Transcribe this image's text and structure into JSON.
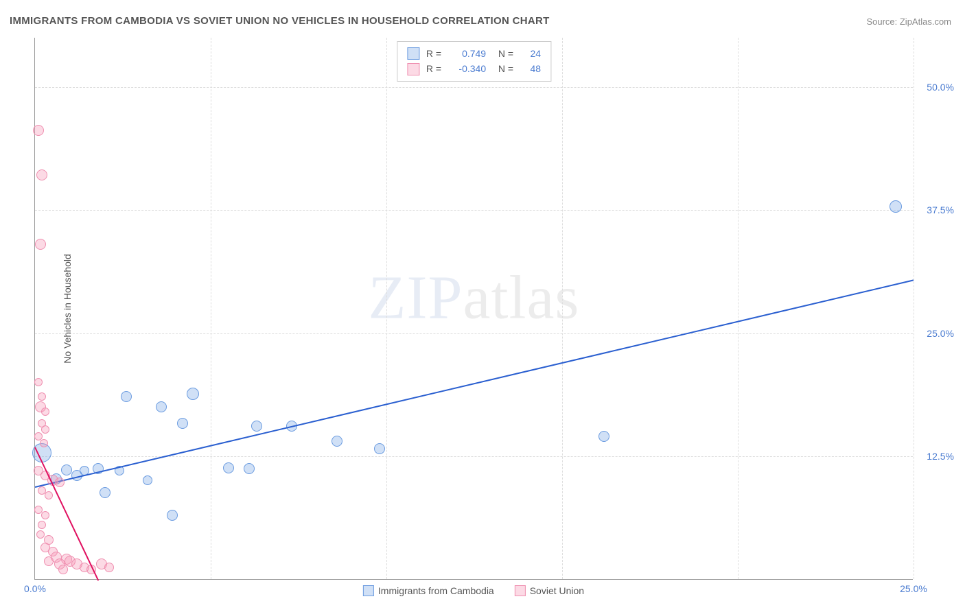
{
  "title": "IMMIGRANTS FROM CAMBODIA VS SOVIET UNION NO VEHICLES IN HOUSEHOLD CORRELATION CHART",
  "source": "Source: ZipAtlas.com",
  "ylabel": "No Vehicles in Household",
  "watermark_a": "ZIP",
  "watermark_b": "atlas",
  "chart": {
    "type": "scatter",
    "xlim": [
      0,
      25
    ],
    "ylim": [
      0,
      55
    ],
    "xticks": [
      {
        "v": 0,
        "l": "0.0%"
      },
      {
        "v": 25,
        "l": "25.0%"
      }
    ],
    "yticks": [
      {
        "v": 12.5,
        "l": "12.5%"
      },
      {
        "v": 25,
        "l": "25.0%"
      },
      {
        "v": 37.5,
        "l": "37.5%"
      },
      {
        "v": 50,
        "l": "50.0%"
      }
    ],
    "xgrid": [
      5,
      10,
      15,
      20,
      25
    ],
    "grid_color": "#dddddd",
    "series": [
      {
        "name": "Immigrants from Cambodia",
        "color_fill": "rgba(120,165,230,0.35)",
        "color_stroke": "#6a9be0",
        "trend_color": "#2a5fd0",
        "trend": {
          "x1": 0,
          "y1": 9.5,
          "x2": 25,
          "y2": 30.5
        },
        "R": "0.749",
        "N": "24",
        "points": [
          {
            "x": 0.2,
            "y": 12.8,
            "r": 14
          },
          {
            "x": 0.6,
            "y": 10.2,
            "r": 8
          },
          {
            "x": 0.9,
            "y": 11.1,
            "r": 8
          },
          {
            "x": 1.2,
            "y": 10.5,
            "r": 8
          },
          {
            "x": 1.4,
            "y": 11.0,
            "r": 7
          },
          {
            "x": 1.8,
            "y": 11.2,
            "r": 8
          },
          {
            "x": 2.0,
            "y": 8.8,
            "r": 8
          },
          {
            "x": 2.4,
            "y": 11.0,
            "r": 7
          },
          {
            "x": 2.6,
            "y": 18.5,
            "r": 8
          },
          {
            "x": 3.2,
            "y": 10.0,
            "r": 7
          },
          {
            "x": 3.6,
            "y": 17.5,
            "r": 8
          },
          {
            "x": 3.9,
            "y": 6.5,
            "r": 8
          },
          {
            "x": 4.2,
            "y": 15.8,
            "r": 8
          },
          {
            "x": 4.5,
            "y": 18.8,
            "r": 9
          },
          {
            "x": 5.5,
            "y": 11.3,
            "r": 8
          },
          {
            "x": 6.1,
            "y": 11.2,
            "r": 8
          },
          {
            "x": 6.3,
            "y": 15.5,
            "r": 8
          },
          {
            "x": 7.3,
            "y": 15.5,
            "r": 8
          },
          {
            "x": 8.6,
            "y": 14.0,
            "r": 8
          },
          {
            "x": 9.8,
            "y": 13.2,
            "r": 8
          },
          {
            "x": 16.2,
            "y": 14.5,
            "r": 8
          },
          {
            "x": 24.5,
            "y": 37.8,
            "r": 9
          }
        ]
      },
      {
        "name": "Soviet Union",
        "color_fill": "rgba(245,150,180,0.35)",
        "color_stroke": "#ef8fb0",
        "trend_color": "#e01060",
        "trend": {
          "x1": 0,
          "y1": 13.5,
          "x2": 1.8,
          "y2": 0
        },
        "R": "-0.340",
        "N": "48",
        "points": [
          {
            "x": 0.1,
            "y": 45.5,
            "r": 8
          },
          {
            "x": 0.2,
            "y": 41.0,
            "r": 8
          },
          {
            "x": 0.15,
            "y": 34.0,
            "r": 8
          },
          {
            "x": 0.1,
            "y": 20.0,
            "r": 6
          },
          {
            "x": 0.2,
            "y": 18.5,
            "r": 6
          },
          {
            "x": 0.15,
            "y": 17.5,
            "r": 8
          },
          {
            "x": 0.3,
            "y": 17.0,
            "r": 6
          },
          {
            "x": 0.2,
            "y": 15.8,
            "r": 6
          },
          {
            "x": 0.3,
            "y": 15.2,
            "r": 6
          },
          {
            "x": 0.1,
            "y": 14.5,
            "r": 6
          },
          {
            "x": 0.25,
            "y": 13.8,
            "r": 6
          },
          {
            "x": 0.1,
            "y": 11.0,
            "r": 7
          },
          {
            "x": 0.3,
            "y": 10.5,
            "r": 7
          },
          {
            "x": 0.5,
            "y": 10.0,
            "r": 8
          },
          {
            "x": 0.7,
            "y": 9.8,
            "r": 7
          },
          {
            "x": 0.2,
            "y": 9.0,
            "r": 6
          },
          {
            "x": 0.4,
            "y": 8.5,
            "r": 6
          },
          {
            "x": 0.1,
            "y": 7.0,
            "r": 6
          },
          {
            "x": 0.3,
            "y": 6.5,
            "r": 6
          },
          {
            "x": 0.2,
            "y": 5.5,
            "r": 6
          },
          {
            "x": 0.15,
            "y": 4.5,
            "r": 6
          },
          {
            "x": 0.4,
            "y": 4.0,
            "r": 7
          },
          {
            "x": 0.3,
            "y": 3.2,
            "r": 7
          },
          {
            "x": 0.5,
            "y": 2.8,
            "r": 7
          },
          {
            "x": 0.6,
            "y": 2.2,
            "r": 8
          },
          {
            "x": 0.9,
            "y": 2.0,
            "r": 8
          },
          {
            "x": 0.4,
            "y": 1.8,
            "r": 7
          },
          {
            "x": 0.7,
            "y": 1.5,
            "r": 8
          },
          {
            "x": 1.0,
            "y": 1.8,
            "r": 8
          },
          {
            "x": 1.2,
            "y": 1.5,
            "r": 8
          },
          {
            "x": 1.4,
            "y": 1.2,
            "r": 7
          },
          {
            "x": 0.8,
            "y": 1.0,
            "r": 7
          },
          {
            "x": 1.6,
            "y": 1.0,
            "r": 7
          },
          {
            "x": 1.9,
            "y": 1.5,
            "r": 8
          },
          {
            "x": 2.1,
            "y": 1.2,
            "r": 7
          }
        ]
      }
    ]
  }
}
